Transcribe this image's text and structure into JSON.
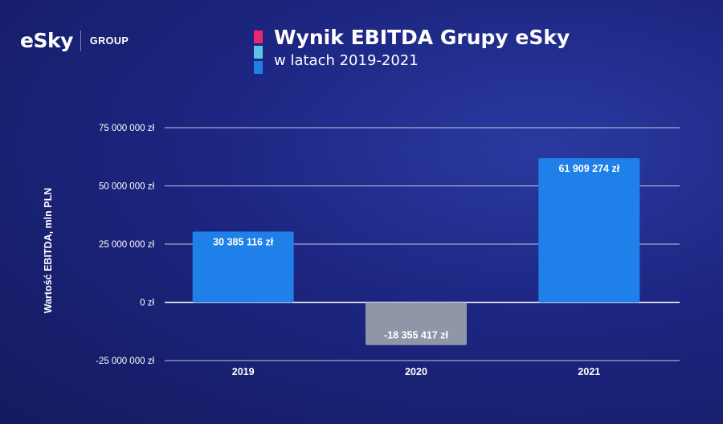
{
  "header": {
    "logo_text": "eSky",
    "logo_group": "GROUP",
    "title": "Wynik EBITDA Grupy eSky",
    "subtitle": "w latach 2019-2021",
    "accent_colors": [
      "#e8296f",
      "#5ec3e8",
      "#1e7fe6"
    ]
  },
  "chart_data": {
    "type": "bar",
    "title": "Wynik EBITDA Grupy eSky",
    "subtitle": "w latach 2019-2021",
    "xlabel": "",
    "ylabel": "Wartość EBITDA, mln PLN",
    "categories": [
      "2019",
      "2020",
      "2021"
    ],
    "values": [
      30385116,
      -18355417,
      61909274
    ],
    "data_labels": [
      "30 385 116 zł",
      "-18 355 417 zł",
      "61 909 274 zł"
    ],
    "bar_colors": [
      "#1e80e8",
      "#8e96a8",
      "#1e80e8"
    ],
    "ylim": [
      -25000000,
      75000000
    ],
    "yticks": [
      75000000,
      50000000,
      25000000,
      0,
      -25000000
    ],
    "ytick_labels": [
      "75 000 000 zł",
      "50 000 000 zł",
      "25 000 000 zł",
      "0 zł",
      "-25 000 000 zł"
    ],
    "grid": true
  }
}
